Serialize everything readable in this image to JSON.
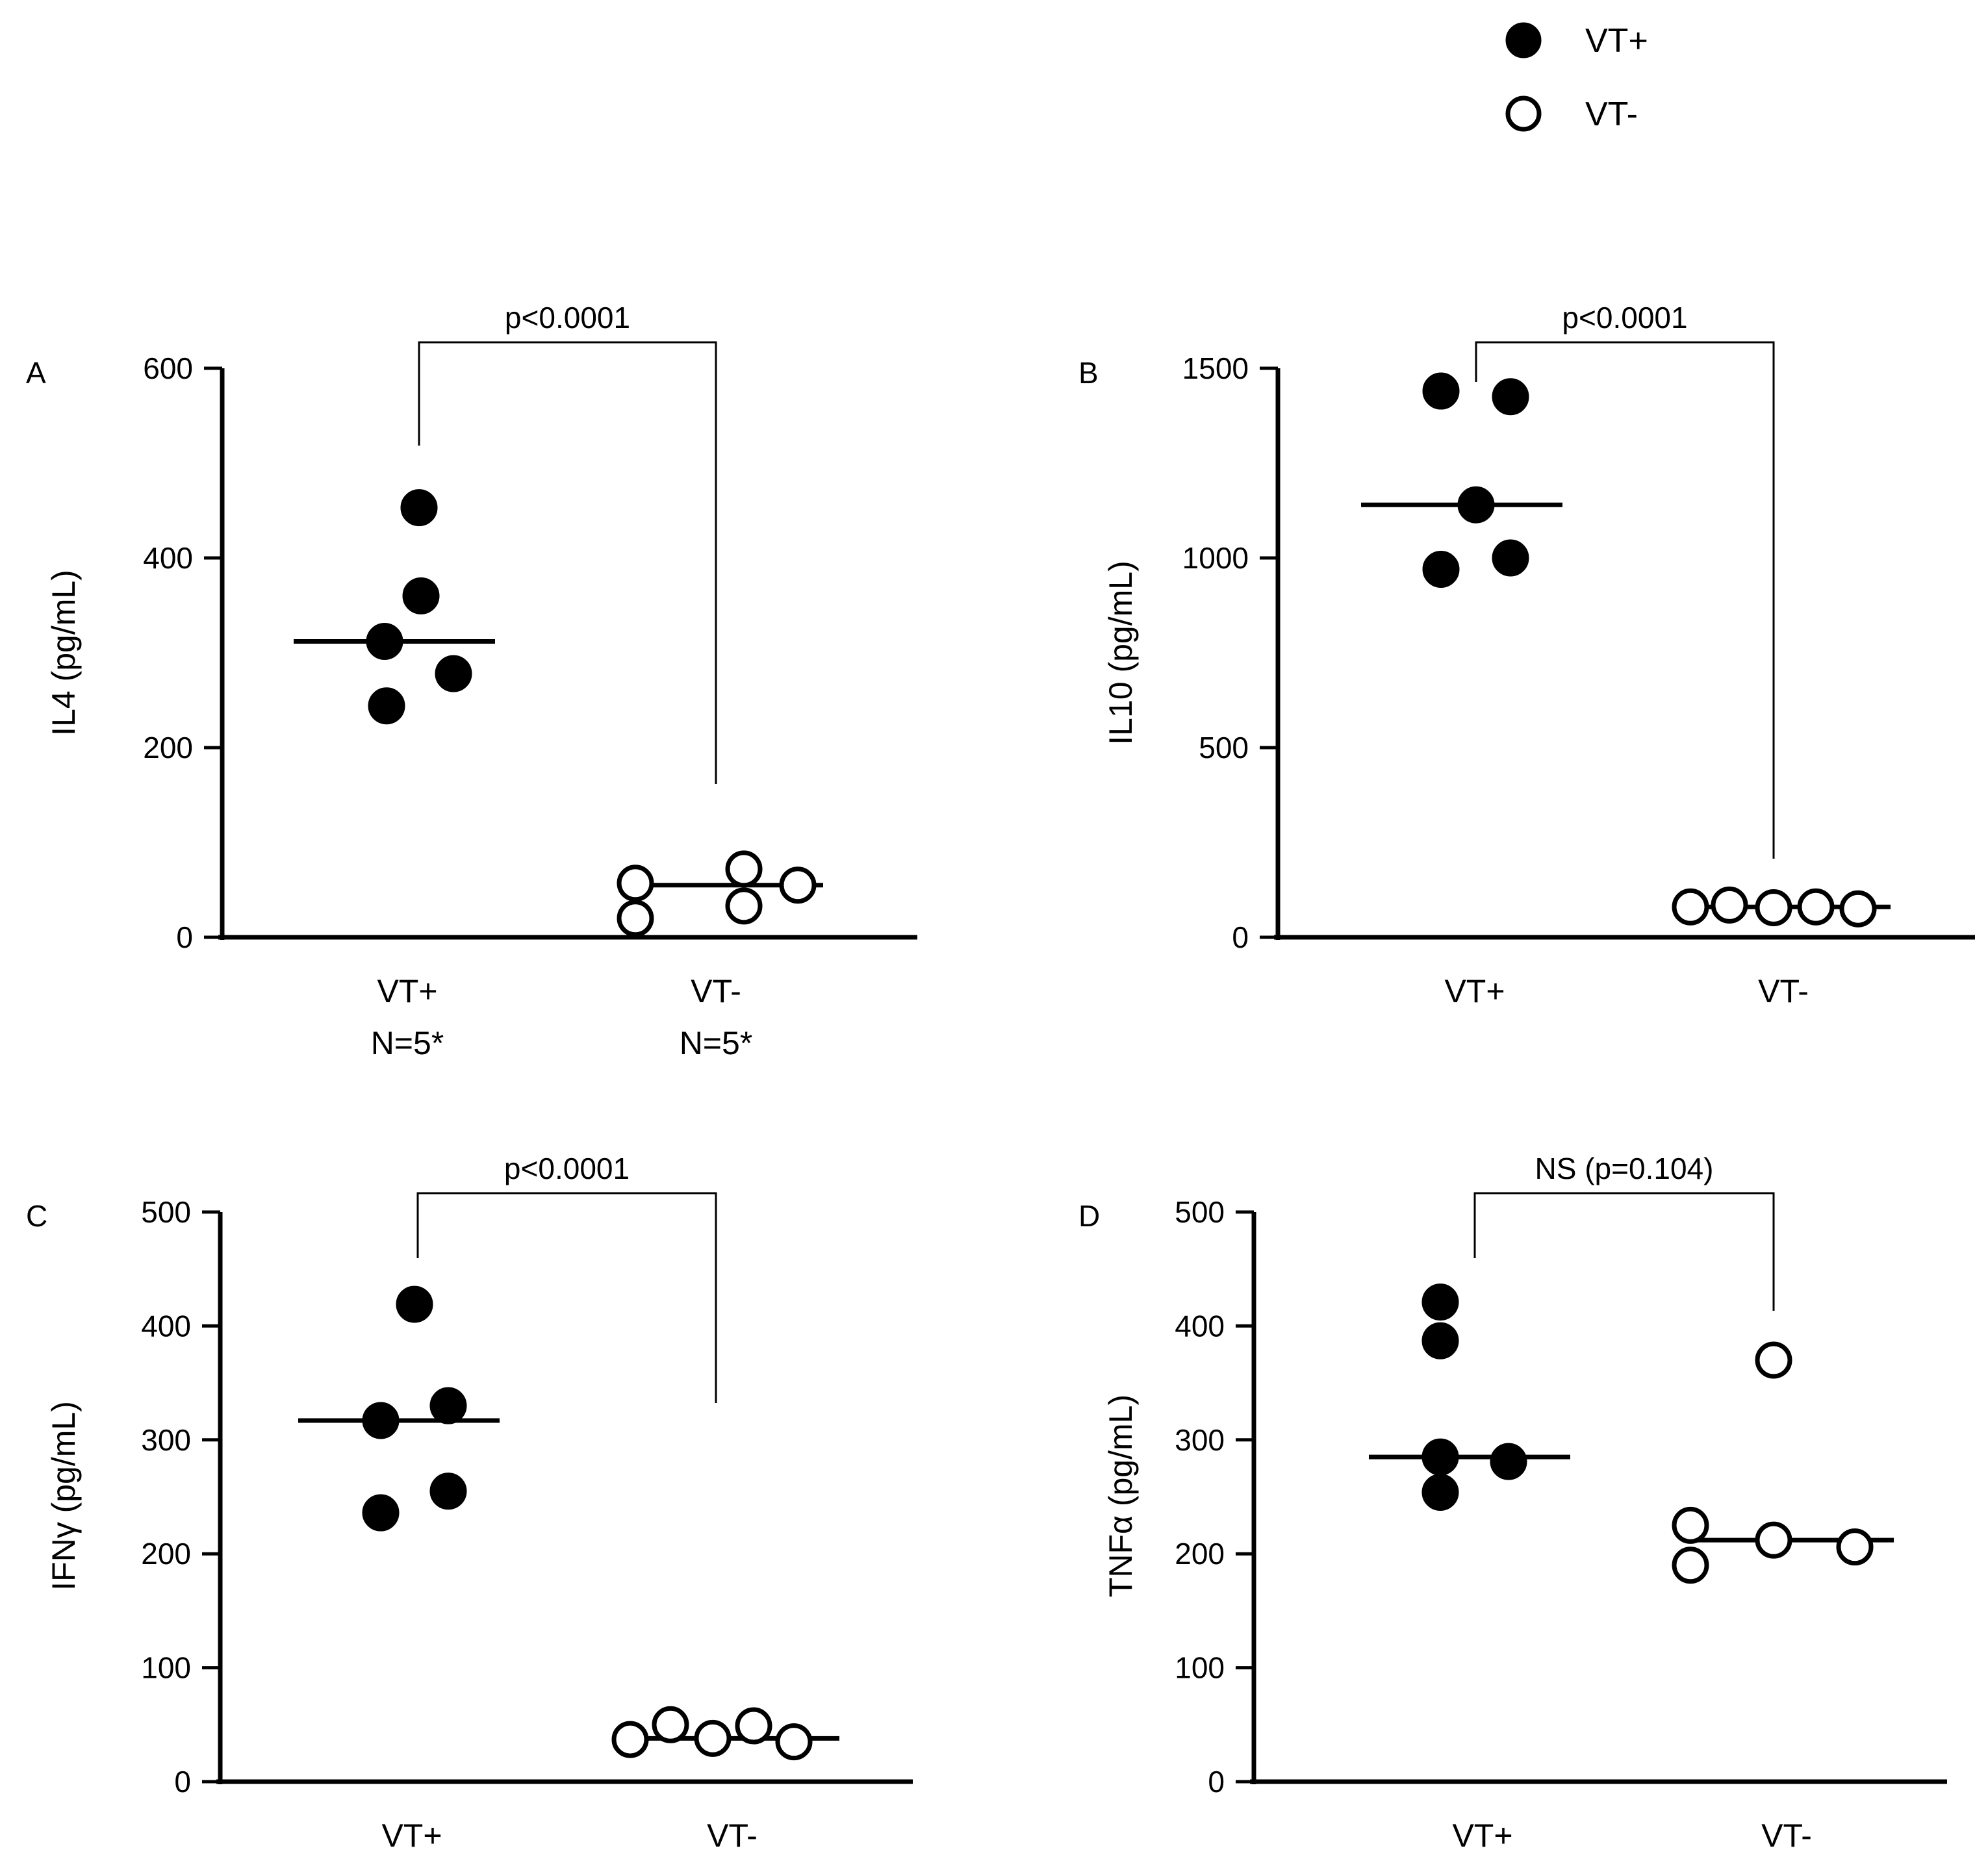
{
  "legend": {
    "items": [
      {
        "label": "VT+",
        "marker": "filled-circle"
      },
      {
        "label": "VT-",
        "marker": "open-circle"
      }
    ]
  },
  "colors": {
    "ink": "#000000",
    "background": "#ffffff"
  },
  "chart_data": [
    {
      "type": "scatter",
      "panel": "A",
      "ylabel": "IL4 (pg/mL)",
      "ylim": [
        0,
        600
      ],
      "yticks": [
        0,
        200,
        400,
        600
      ],
      "categories": [
        "VT+\nN=5*",
        "VT-\nN=5*"
      ],
      "series": [
        {
          "name": "VT+",
          "marker": "filled",
          "values": [
            453,
            360,
            312,
            278,
            244
          ],
          "median": 312
        },
        {
          "name": "VT-",
          "marker": "open",
          "values": [
            72,
            57,
            55,
            33,
            20
          ],
          "median": 55
        }
      ],
      "annotation": "p<0.0001"
    },
    {
      "type": "scatter",
      "panel": "B",
      "ylabel": "IL10 (pg/mL)",
      "ylim": [
        0,
        1500
      ],
      "yticks": [
        0,
        500,
        1000,
        1500
      ],
      "categories": [
        "VT+",
        "VT-"
      ],
      "series": [
        {
          "name": "VT+",
          "marker": "filled",
          "values": [
            1440,
            1425,
            1140,
            1000,
            970
          ],
          "median": 1140
        },
        {
          "name": "VT-",
          "marker": "open",
          "values": [
            85,
            80,
            80,
            78,
            75
          ],
          "median": 80
        }
      ],
      "annotation": "p<0.0001"
    },
    {
      "type": "scatter",
      "panel": "C",
      "ylabel": "IFNγ (pg/mL)",
      "ylim": [
        0,
        500
      ],
      "yticks": [
        0,
        100,
        200,
        300,
        400,
        500
      ],
      "categories": [
        "VT+",
        "VT-"
      ],
      "series": [
        {
          "name": "VT+",
          "marker": "filled",
          "values": [
            419,
            330,
            317,
            255,
            236
          ],
          "median": 317
        },
        {
          "name": "VT-",
          "marker": "open",
          "values": [
            50,
            49,
            38,
            37,
            35
          ],
          "median": 38
        }
      ],
      "annotation": "p<0.0001"
    },
    {
      "type": "scatter",
      "panel": "D",
      "ylabel": "TNFα (pg/mL)",
      "ylim": [
        0,
        500
      ],
      "yticks": [
        0,
        100,
        200,
        300,
        400,
        500
      ],
      "categories": [
        "VT+",
        "VT-"
      ],
      "series": [
        {
          "name": "VT+",
          "marker": "filled",
          "values": [
            421,
            387,
            285,
            281,
            254
          ],
          "median": 285
        },
        {
          "name": "VT-",
          "marker": "open",
          "values": [
            370,
            225,
            212,
            206,
            190
          ],
          "median": 212
        }
      ],
      "annotation": "NS (p=0.104)"
    }
  ]
}
